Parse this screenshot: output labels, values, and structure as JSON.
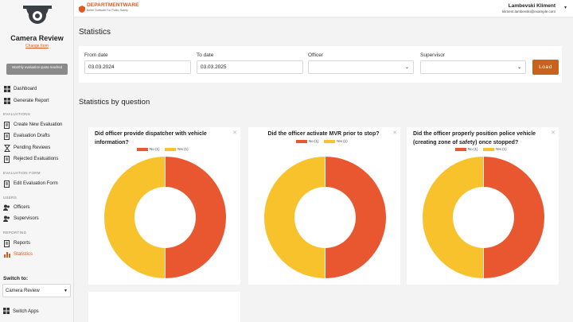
{
  "sidebar": {
    "app_title": "Camera Review",
    "change_link": "Change form",
    "quota_badge": "Monthly evaluation quota reached",
    "items": {
      "dashboard": "Dashboard",
      "generate_report": "Generate Report",
      "create_eval": "Create New Evaluation",
      "eval_drafts": "Evaluation Drafts",
      "pending_reviews": "Pending Reviews",
      "rejected_evals": "Rejected Evaluations",
      "edit_form": "Edit Evaluation Form",
      "officers": "Officers",
      "supervisors": "Supervisors",
      "reports": "Reports",
      "statistics": "Statistics"
    },
    "sections": {
      "evaluations": "EVALUATIONS",
      "evaluation_form": "EVALUATION FORM",
      "users": "USERS",
      "reporting": "REPORTING"
    },
    "switch_label": "Switch to:",
    "switch_value": "Camera Review",
    "switch_apps": "Switch Apps"
  },
  "topbar": {
    "brand_name": "DEPARTMENTWARE",
    "brand_tag": "Better Software For Public Safety",
    "user_name": "Lambevski Kliment",
    "user_email": "kliment.lambevski@example.com"
  },
  "page": {
    "title": "Statistics",
    "section_title": "Statistics by question"
  },
  "filters": {
    "from_label": "From date",
    "from_value": "03.03.2024",
    "to_label": "To date",
    "to_value": "03.03.2025",
    "officer_label": "Officer",
    "officer_value": "",
    "supervisor_label": "Supervisor",
    "supervisor_value": "",
    "load_label": "Load"
  },
  "colors": {
    "accent": "#e05a1f",
    "no": "#e8572f",
    "yes": "#f7c22c"
  },
  "questions": [
    {
      "title": "Did officer provide dispatcher with vehicle information?",
      "legend_no": "No (1)",
      "legend_yes": "Yes (1)",
      "no": 1,
      "yes": 1
    },
    {
      "title": "Did the officer activate MVR prior to stop?",
      "legend_no": "No (1)",
      "legend_yes": "Yes (1)",
      "no": 1,
      "yes": 1
    },
    {
      "title": "Did the officer properly position police vehicle (creating zone of safety) once stopped?",
      "legend_no": "No (1)",
      "legend_yes": "Yes (1)",
      "no": 1,
      "yes": 1
    }
  ]
}
